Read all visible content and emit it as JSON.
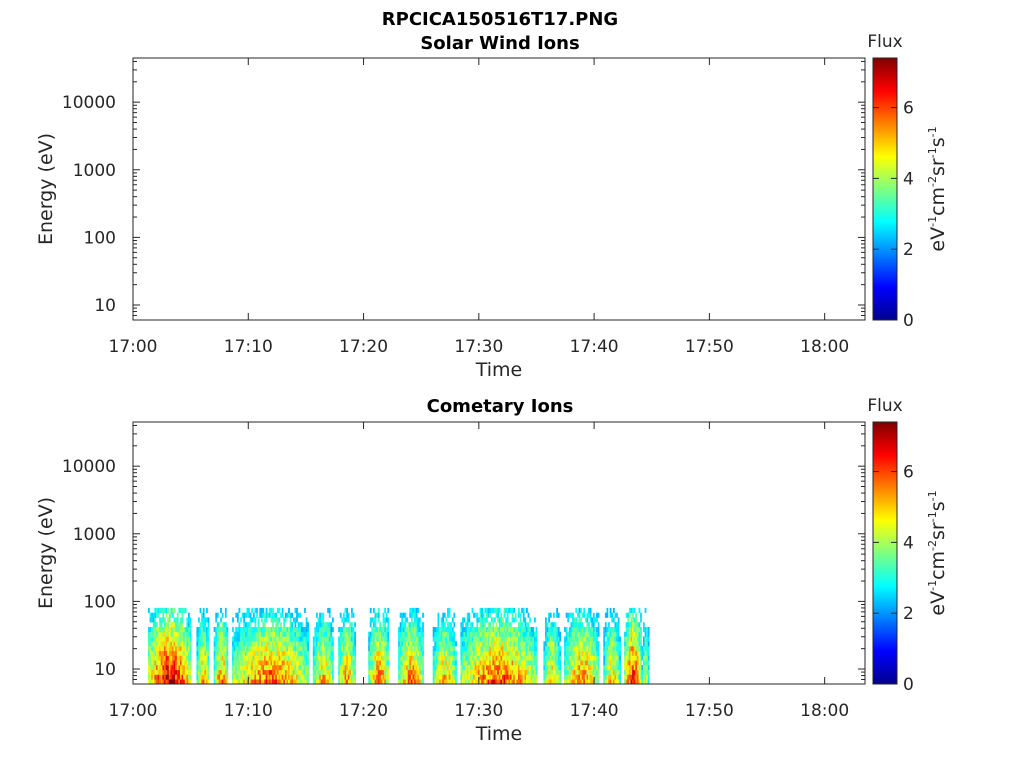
{
  "figure": {
    "title": "RPCICA150516T17.PNG"
  },
  "chart_data": [
    {
      "type": "heatmap",
      "title": "Solar Wind Ions",
      "xlabel": "Time",
      "ylabel": "Energy (eV)",
      "x_ticks": [
        "17:00",
        "17:10",
        "17:20",
        "17:30",
        "17:40",
        "17:50",
        "18:00"
      ],
      "x_range_minutes": [
        0,
        63.5
      ],
      "y_scale": "log",
      "y_ticks": [
        "10",
        "100",
        "1000",
        "10000"
      ],
      "y_range": [
        6,
        45000
      ],
      "colorbar": {
        "label": "Flux",
        "unit_label": "eV-1cm-2sr-1s-1",
        "ticks": [
          "0",
          "2",
          "4",
          "6"
        ],
        "range": [
          0,
          7.4
        ]
      },
      "data_extent": null
    },
    {
      "type": "heatmap",
      "title": "Cometary Ions",
      "xlabel": "Time",
      "ylabel": "Energy (eV)",
      "x_ticks": [
        "17:00",
        "17:10",
        "17:20",
        "17:30",
        "17:40",
        "17:50",
        "18:00"
      ],
      "x_range_minutes": [
        0,
        63.5
      ],
      "y_scale": "log",
      "y_ticks": [
        "10",
        "100",
        "1000",
        "10000"
      ],
      "y_range": [
        6,
        45000
      ],
      "colorbar": {
        "label": "Flux",
        "unit_label": "eV-1cm-2sr-1s-1",
        "ticks": [
          "0",
          "2",
          "4",
          "6"
        ],
        "range": [
          0,
          7.4
        ]
      },
      "data_extent": {
        "time_start": "17:01",
        "time_end": "17:45",
        "energy_min": 6,
        "energy_max": 80
      },
      "activity_bursts": [
        {
          "start": 1.3,
          "end": 5.0,
          "peak_flux": 7.2
        },
        {
          "start": 5.5,
          "end": 6.6,
          "peak_flux": 5.5
        },
        {
          "start": 7.0,
          "end": 8.2,
          "peak_flux": 6.0
        },
        {
          "start": 8.6,
          "end": 15.2,
          "peak_flux": 6.2
        },
        {
          "start": 15.6,
          "end": 17.4,
          "peak_flux": 5.6
        },
        {
          "start": 17.8,
          "end": 19.2,
          "peak_flux": 5.8
        },
        {
          "start": 20.4,
          "end": 22.2,
          "peak_flux": 6.0
        },
        {
          "start": 23.0,
          "end": 25.2,
          "peak_flux": 6.0
        },
        {
          "start": 26.0,
          "end": 28.0,
          "peak_flux": 5.6
        },
        {
          "start": 28.4,
          "end": 35.0,
          "peak_flux": 6.4
        },
        {
          "start": 35.6,
          "end": 37.0,
          "peak_flux": 5.4
        },
        {
          "start": 37.4,
          "end": 40.4,
          "peak_flux": 6.0
        },
        {
          "start": 40.8,
          "end": 42.2,
          "peak_flux": 5.4
        },
        {
          "start": 42.6,
          "end": 44.0,
          "peak_flux": 7.0
        },
        {
          "start": 44.1,
          "end": 44.7,
          "peak_flux": 4.8
        }
      ]
    }
  ]
}
